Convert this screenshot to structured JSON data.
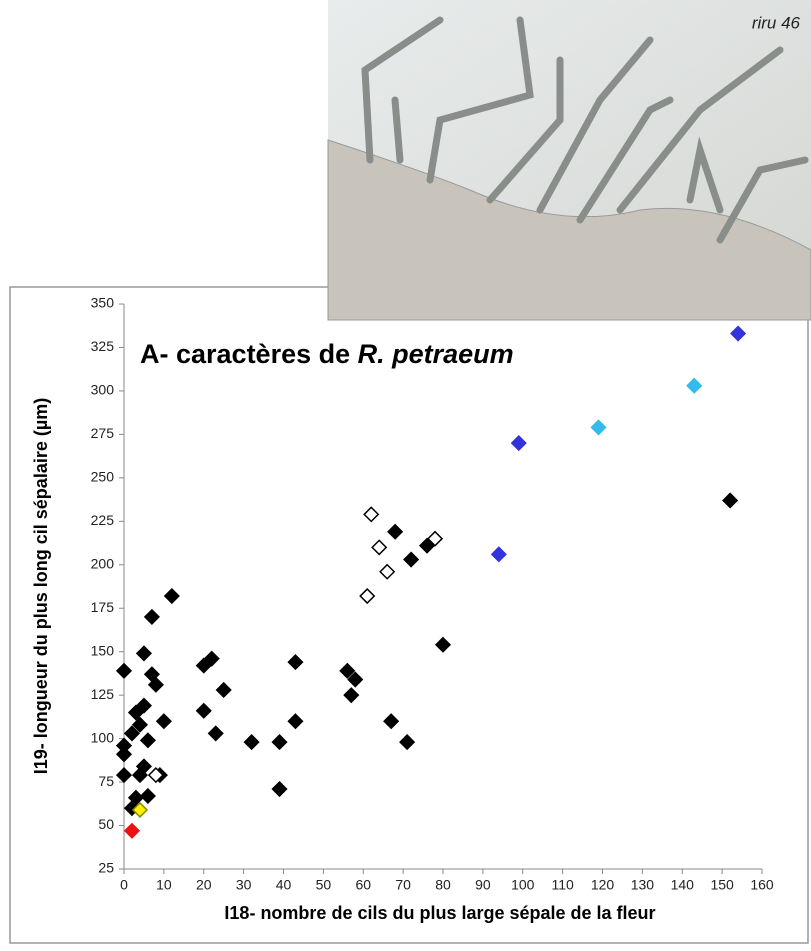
{
  "photo": {
    "label": "riru 46"
  },
  "chart_data": {
    "type": "scatter",
    "title": "A- caractères de",
    "title_italic": "R. petraeum",
    "x_label": "I18- nombre de cils du plus large sépale de la fleur",
    "y_label": "I19- longueur du plus long cil sépalaire (µm)",
    "xlim": [
      0,
      160
    ],
    "ylim": [
      25,
      350
    ],
    "xticks": [
      0,
      10,
      20,
      30,
      40,
      50,
      60,
      70,
      80,
      90,
      100,
      110,
      120,
      130,
      140,
      150,
      160
    ],
    "yticks": [
      25,
      50,
      75,
      100,
      125,
      150,
      175,
      200,
      225,
      250,
      275,
      300,
      325,
      350
    ],
    "marker": "diamond",
    "series": [
      {
        "color": "#000000",
        "fill": "#000000",
        "x": [
          0,
          0,
          0,
          0,
          2,
          3,
          4,
          5,
          5,
          6,
          7,
          8,
          7,
          10,
          9,
          4,
          3,
          2,
          6,
          5,
          12,
          20,
          22,
          20,
          23,
          25,
          32,
          39,
          39,
          43,
          43,
          56,
          58,
          57,
          67,
          71,
          68,
          72,
          76,
          80,
          152
        ],
        "y": [
          139,
          96,
          91,
          79,
          103,
          115,
          108,
          149,
          119,
          99,
          137,
          131,
          170,
          110,
          79,
          79,
          66,
          60,
          67,
          84,
          182,
          142,
          146,
          116,
          103,
          128,
          98,
          98,
          71,
          144,
          110,
          139,
          134,
          125,
          110,
          98,
          219,
          203,
          211,
          154,
          237
        ]
      },
      {
        "color": "#000000",
        "fill": "#ffffff",
        "x": [
          61,
          62,
          64,
          66,
          78,
          8
        ],
        "y": [
          182,
          229,
          210,
          196,
          215,
          79
        ]
      },
      {
        "color": "#3333dd",
        "fill": "#3333dd",
        "x": [
          94,
          99,
          154
        ],
        "y": [
          206,
          270,
          333
        ]
      },
      {
        "color": "#33bbee",
        "fill": "#33bbee",
        "x": [
          119,
          143
        ],
        "y": [
          279,
          303
        ]
      },
      {
        "color": "#888800",
        "fill": "#ffee00",
        "x": [
          4
        ],
        "y": [
          59
        ]
      },
      {
        "color": "#ee1111",
        "fill": "#ee1111",
        "x": [
          2
        ],
        "y": [
          47
        ]
      }
    ]
  }
}
